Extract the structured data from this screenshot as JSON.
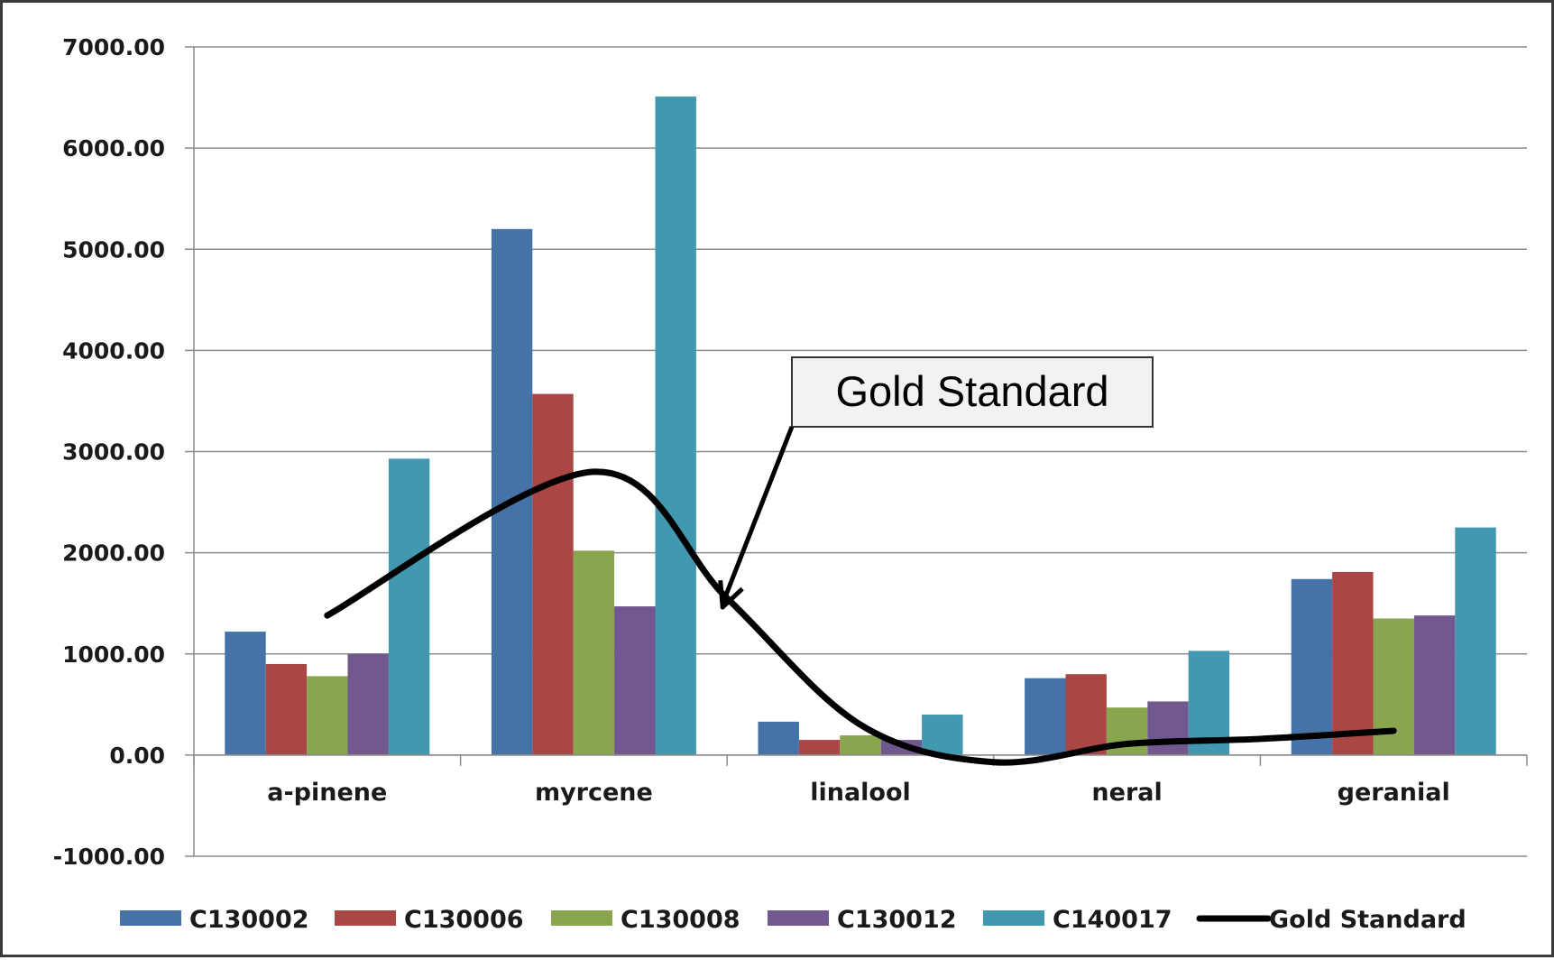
{
  "chart_data": {
    "type": "bar",
    "categories": [
      "a-pinene",
      "myrcene",
      "linalool",
      "neral",
      "geranial"
    ],
    "series": [
      {
        "name": "C130002",
        "color": "#4572a7",
        "values": [
          1220,
          5200,
          330,
          760,
          1740
        ]
      },
      {
        "name": "C130006",
        "color": "#aa4643",
        "values": [
          900,
          3570,
          150,
          800,
          1810
        ]
      },
      {
        "name": "C130008",
        "color": "#89a54e",
        "values": [
          780,
          2020,
          195,
          470,
          1350
        ]
      },
      {
        "name": "C130012",
        "color": "#71588f",
        "values": [
          1000,
          1470,
          150,
          530,
          1380
        ]
      },
      {
        "name": "C140017",
        "color": "#4198af",
        "values": [
          2930,
          6510,
          400,
          1030,
          2250
        ]
      }
    ],
    "ylim": [
      -1000,
      7000
    ],
    "yticks": [
      "7000.00",
      "6000.00",
      "5000.00",
      "4000.00",
      "3000.00",
      "2000.00",
      "1000.00",
      "0.00",
      "-1000.00"
    ],
    "grid": true,
    "legend_position": "bottom",
    "overlay": {
      "name": "Gold Standard",
      "color": "#000000",
      "points": [
        [
          0,
          1380
        ],
        [
          1,
          2800
        ],
        [
          1.5,
          1550
        ],
        [
          2,
          300
        ],
        [
          2.5,
          -70
        ],
        [
          3,
          110
        ],
        [
          3.5,
          160
        ],
        [
          4,
          240
        ]
      ]
    },
    "annotation": {
      "text": "Gold Standard",
      "points_to_x": 1.5
    }
  }
}
